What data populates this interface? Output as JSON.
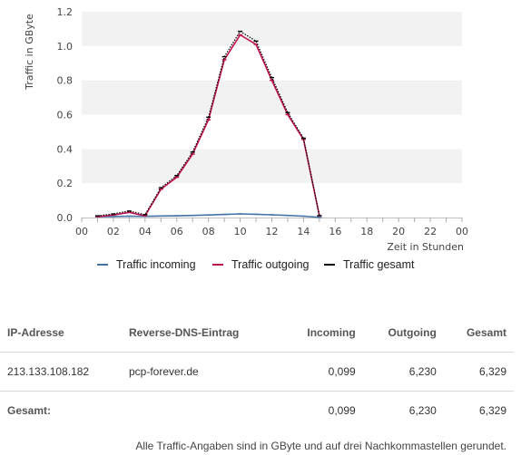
{
  "chart_data": {
    "type": "line",
    "xlabel": "Zeit in Stunden",
    "ylabel": "Traffic in GByte",
    "xlim": [
      0,
      24
    ],
    "ylim": [
      0,
      1.2
    ],
    "xticks": [
      "00",
      "02",
      "04",
      "06",
      "08",
      "10",
      "12",
      "14",
      "16",
      "18",
      "20",
      "22",
      "00"
    ],
    "yticks": [
      "0.0",
      "0.2",
      "0.4",
      "0.6",
      "0.8",
      "1.0",
      "1.2"
    ],
    "grid": "horizontal bands",
    "legend_position": "bottom",
    "x": [
      1,
      2,
      3,
      4,
      5,
      6,
      7,
      8,
      9,
      10,
      11,
      12,
      13,
      14,
      15
    ],
    "series": [
      {
        "name": "Traffic incoming",
        "color": "#4572a7",
        "values": [
          0.005,
          0.006,
          0.008,
          0.007,
          0.009,
          0.01,
          0.012,
          0.015,
          0.018,
          0.021,
          0.019,
          0.016,
          0.012,
          0.008,
          0.001
        ]
      },
      {
        "name": "Traffic outgoing",
        "color": "#c0104f",
        "values": [
          0.005,
          0.015,
          0.03,
          0.01,
          0.165,
          0.235,
          0.37,
          0.57,
          0.92,
          1.065,
          1.01,
          0.8,
          0.6,
          0.455,
          0.01
        ]
      },
      {
        "name": "Traffic gesamt",
        "color": "#000000",
        "values": [
          0.01,
          0.021,
          0.038,
          0.017,
          0.174,
          0.245,
          0.382,
          0.585,
          0.938,
          1.086,
          1.029,
          0.816,
          0.612,
          0.463,
          0.011
        ]
      }
    ]
  },
  "table": {
    "headers": [
      "IP-Adresse",
      "Reverse-DNS-Eintrag",
      "Incoming",
      "Outgoing",
      "Gesamt"
    ],
    "rows": [
      {
        "ip": "213.133.108.182",
        "dns": "pcp-forever.de",
        "incoming": "0,099",
        "outgoing": "6,230",
        "gesamt": "6,329"
      }
    ],
    "total": {
      "label": "Gesamt:",
      "incoming": "0,099",
      "outgoing": "6,230",
      "gesamt": "6,329"
    }
  },
  "note": "Alle Traffic-Angaben sind in GByte und auf drei Nachkommastellen gerundet."
}
